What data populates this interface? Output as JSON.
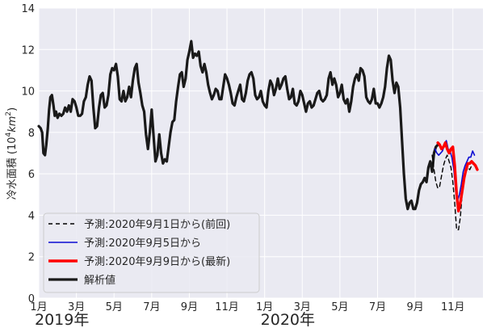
{
  "chart_data": {
    "type": "line",
    "title": "",
    "xlabel": "",
    "ylabel_prefix": "冷水面積 (10",
    "ylabel_exp1": "4",
    "ylabel_unit": "km",
    "ylabel_exp2": "2",
    "ylabel_suffix": ")",
    "ylim": [
      0,
      14
    ],
    "yticks": [
      "0",
      "2",
      "4",
      "6",
      "8",
      "10",
      "12",
      "14"
    ],
    "xlim_months": [
      0,
      23.6
    ],
    "xticks": [
      {
        "m": 0,
        "label": "1月"
      },
      {
        "m": 2,
        "label": "3月"
      },
      {
        "m": 4,
        "label": "5月"
      },
      {
        "m": 6,
        "label": "7月"
      },
      {
        "m": 8,
        "label": "9月"
      },
      {
        "m": 10,
        "label": "11月"
      },
      {
        "m": 12,
        "label": "1月"
      },
      {
        "m": 14,
        "label": "3月"
      },
      {
        "m": 16,
        "label": "5月"
      },
      {
        "m": 18,
        "label": "7月"
      },
      {
        "m": 20,
        "label": "9月"
      },
      {
        "m": 22,
        "label": "11月"
      }
    ],
    "year_labels": [
      {
        "m": 0,
        "label": "2019年"
      },
      {
        "m": 12,
        "label": "2020年"
      }
    ],
    "grid": true,
    "legend_position": "lower-left",
    "series": [
      {
        "name": "解析値",
        "color": "#1a1a1a",
        "dash": "",
        "width": 3.2,
        "points": [
          [
            0.0,
            8.3
          ],
          [
            0.1,
            8.2
          ],
          [
            0.18,
            8.0
          ],
          [
            0.25,
            7.0
          ],
          [
            0.33,
            6.9
          ],
          [
            0.4,
            7.4
          ],
          [
            0.48,
            8.2
          ],
          [
            0.55,
            9.1
          ],
          [
            0.62,
            9.7
          ],
          [
            0.7,
            9.8
          ],
          [
            0.78,
            9.3
          ],
          [
            0.85,
            8.8
          ],
          [
            0.92,
            9.0
          ],
          [
            1.0,
            8.7
          ],
          [
            1.1,
            8.9
          ],
          [
            1.2,
            8.8
          ],
          [
            1.3,
            8.9
          ],
          [
            1.4,
            9.2
          ],
          [
            1.5,
            9.0
          ],
          [
            1.6,
            9.3
          ],
          [
            1.7,
            9.0
          ],
          [
            1.8,
            9.6
          ],
          [
            1.9,
            9.5
          ],
          [
            2.0,
            9.2
          ],
          [
            2.1,
            8.8
          ],
          [
            2.2,
            8.8
          ],
          [
            2.3,
            8.9
          ],
          [
            2.4,
            9.5
          ],
          [
            2.5,
            9.7
          ],
          [
            2.6,
            10.3
          ],
          [
            2.7,
            10.7
          ],
          [
            2.8,
            10.5
          ],
          [
            2.9,
            9.2
          ],
          [
            3.0,
            8.2
          ],
          [
            3.1,
            8.3
          ],
          [
            3.2,
            9.2
          ],
          [
            3.3,
            9.8
          ],
          [
            3.4,
            9.9
          ],
          [
            3.5,
            9.2
          ],
          [
            3.6,
            9.3
          ],
          [
            3.7,
            9.8
          ],
          [
            3.8,
            10.8
          ],
          [
            3.9,
            11.1
          ],
          [
            4.0,
            11.0
          ],
          [
            4.1,
            11.3
          ],
          [
            4.2,
            10.7
          ],
          [
            4.3,
            9.6
          ],
          [
            4.4,
            9.5
          ],
          [
            4.5,
            10.0
          ],
          [
            4.6,
            9.5
          ],
          [
            4.7,
            9.7
          ],
          [
            4.8,
            10.2
          ],
          [
            4.9,
            9.7
          ],
          [
            5.0,
            10.5
          ],
          [
            5.1,
            11.1
          ],
          [
            5.2,
            11.3
          ],
          [
            5.3,
            10.4
          ],
          [
            5.4,
            9.9
          ],
          [
            5.5,
            9.3
          ],
          [
            5.6,
            9.0
          ],
          [
            5.7,
            7.9
          ],
          [
            5.8,
            7.2
          ],
          [
            5.9,
            8.0
          ],
          [
            6.0,
            9.1
          ],
          [
            6.1,
            7.8
          ],
          [
            6.2,
            6.6
          ],
          [
            6.3,
            6.9
          ],
          [
            6.4,
            7.9
          ],
          [
            6.5,
            7.0
          ],
          [
            6.6,
            6.5
          ],
          [
            6.7,
            6.7
          ],
          [
            6.8,
            6.6
          ],
          [
            6.9,
            7.3
          ],
          [
            7.0,
            8.0
          ],
          [
            7.1,
            8.5
          ],
          [
            7.2,
            8.6
          ],
          [
            7.3,
            9.5
          ],
          [
            7.4,
            10.2
          ],
          [
            7.5,
            10.8
          ],
          [
            7.6,
            10.9
          ],
          [
            7.7,
            10.2
          ],
          [
            7.8,
            10.6
          ],
          [
            7.9,
            11.5
          ],
          [
            8.0,
            11.9
          ],
          [
            8.1,
            12.4
          ],
          [
            8.2,
            11.6
          ],
          [
            8.3,
            11.8
          ],
          [
            8.4,
            11.7
          ],
          [
            8.5,
            11.9
          ],
          [
            8.6,
            11.2
          ],
          [
            8.7,
            10.9
          ],
          [
            8.8,
            11.3
          ],
          [
            8.9,
            10.9
          ],
          [
            9.0,
            10.3
          ],
          [
            9.1,
            9.9
          ],
          [
            9.2,
            9.6
          ],
          [
            9.3,
            9.8
          ],
          [
            9.4,
            10.1
          ],
          [
            9.5,
            10.0
          ],
          [
            9.6,
            9.6
          ],
          [
            9.7,
            9.6
          ],
          [
            9.8,
            10.2
          ],
          [
            9.9,
            10.8
          ],
          [
            10.0,
            10.6
          ],
          [
            10.1,
            10.3
          ],
          [
            10.2,
            9.9
          ],
          [
            10.3,
            9.4
          ],
          [
            10.4,
            9.3
          ],
          [
            10.5,
            9.7
          ],
          [
            10.6,
            10.0
          ],
          [
            10.7,
            10.3
          ],
          [
            10.8,
            9.6
          ],
          [
            10.9,
            9.5
          ],
          [
            11.0,
            9.9
          ],
          [
            11.1,
            10.5
          ],
          [
            11.2,
            10.8
          ],
          [
            11.3,
            10.9
          ],
          [
            11.4,
            10.6
          ],
          [
            11.5,
            9.8
          ],
          [
            11.6,
            9.6
          ],
          [
            11.7,
            9.7
          ],
          [
            11.8,
            10.0
          ],
          [
            11.9,
            9.5
          ],
          [
            12.0,
            9.3
          ],
          [
            12.1,
            9.2
          ],
          [
            12.2,
            10.0
          ],
          [
            12.3,
            10.5
          ],
          [
            12.4,
            10.3
          ],
          [
            12.5,
            9.8
          ],
          [
            12.6,
            10.1
          ],
          [
            12.7,
            10.6
          ],
          [
            12.8,
            10.1
          ],
          [
            12.9,
            10.3
          ],
          [
            13.0,
            10.6
          ],
          [
            13.1,
            10.7
          ],
          [
            13.2,
            10.1
          ],
          [
            13.3,
            9.6
          ],
          [
            13.4,
            9.7
          ],
          [
            13.5,
            10.1
          ],
          [
            13.6,
            9.4
          ],
          [
            13.7,
            9.3
          ],
          [
            13.8,
            9.5
          ],
          [
            13.9,
            10.0
          ],
          [
            14.0,
            9.8
          ],
          [
            14.1,
            9.4
          ],
          [
            14.2,
            9.0
          ],
          [
            14.3,
            9.4
          ],
          [
            14.4,
            9.5
          ],
          [
            14.5,
            9.2
          ],
          [
            14.6,
            9.3
          ],
          [
            14.7,
            9.6
          ],
          [
            14.8,
            9.9
          ],
          [
            14.9,
            10.0
          ],
          [
            15.0,
            9.6
          ],
          [
            15.1,
            9.5
          ],
          [
            15.2,
            9.6
          ],
          [
            15.3,
            9.8
          ],
          [
            15.4,
            10.6
          ],
          [
            15.5,
            10.9
          ],
          [
            15.6,
            10.3
          ],
          [
            15.7,
            10.6
          ],
          [
            15.8,
            10.3
          ],
          [
            15.9,
            9.7
          ],
          [
            16.0,
            9.9
          ],
          [
            16.1,
            10.3
          ],
          [
            16.2,
            9.6
          ],
          [
            16.3,
            9.4
          ],
          [
            16.4,
            9.6
          ],
          [
            16.5,
            9.0
          ],
          [
            16.6,
            9.5
          ],
          [
            16.7,
            10.2
          ],
          [
            16.8,
            10.6
          ],
          [
            16.9,
            10.8
          ],
          [
            17.0,
            10.5
          ],
          [
            17.1,
            11.1
          ],
          [
            17.2,
            11.0
          ],
          [
            17.3,
            10.7
          ],
          [
            17.4,
            9.7
          ],
          [
            17.5,
            9.5
          ],
          [
            17.6,
            9.4
          ],
          [
            17.7,
            9.6
          ],
          [
            17.8,
            10.1
          ],
          [
            17.9,
            9.4
          ],
          [
            18.0,
            9.4
          ],
          [
            18.1,
            9.2
          ],
          [
            18.2,
            9.4
          ],
          [
            18.3,
            9.7
          ],
          [
            18.4,
            10.2
          ],
          [
            18.5,
            11.1
          ],
          [
            18.6,
            11.7
          ],
          [
            18.7,
            11.5
          ],
          [
            18.8,
            10.5
          ],
          [
            18.9,
            9.9
          ],
          [
            19.0,
            10.4
          ],
          [
            19.1,
            10.2
          ],
          [
            19.2,
            9.2
          ],
          [
            19.3,
            7.6
          ],
          [
            19.4,
            6.0
          ],
          [
            19.5,
            4.8
          ],
          [
            19.6,
            4.3
          ],
          [
            19.7,
            4.6
          ],
          [
            19.8,
            4.7
          ],
          [
            19.9,
            4.3
          ],
          [
            20.0,
            4.3
          ],
          [
            20.1,
            4.6
          ],
          [
            20.2,
            5.2
          ],
          [
            20.3,
            5.5
          ],
          [
            20.4,
            5.6
          ],
          [
            20.5,
            5.8
          ],
          [
            20.6,
            5.6
          ],
          [
            20.7,
            6.3
          ],
          [
            20.8,
            6.6
          ],
          [
            20.9,
            6.1
          ],
          [
            21.0,
            7.0
          ],
          [
            21.1,
            7.3
          ],
          [
            21.2,
            7.4
          ]
        ]
      },
      {
        "name": "予測:2020年9月1日から(前回)",
        "color": "#000000",
        "dash": "5,4",
        "width": 1.4,
        "points": [
          [
            20.9,
            6.9
          ],
          [
            21.0,
            6.2
          ],
          [
            21.1,
            5.6
          ],
          [
            21.2,
            5.3
          ],
          [
            21.3,
            5.4
          ],
          [
            21.4,
            5.9
          ],
          [
            21.5,
            6.4
          ],
          [
            21.6,
            6.7
          ],
          [
            21.7,
            6.9
          ],
          [
            21.8,
            6.6
          ],
          [
            21.9,
            6.3
          ],
          [
            22.0,
            5.6
          ],
          [
            22.1,
            4.6
          ],
          [
            22.2,
            3.3
          ],
          [
            22.3,
            3.3
          ],
          [
            22.4,
            3.9
          ],
          [
            22.5,
            5.1
          ],
          [
            22.6,
            5.7
          ],
          [
            22.7,
            6.1
          ],
          [
            22.8,
            6.3
          ],
          [
            22.9,
            6.2
          ],
          [
            23.0,
            6.4
          ],
          [
            23.1,
            6.5
          ],
          [
            23.2,
            6.3
          ]
        ]
      },
      {
        "name": "予測:2020年9月5日から",
        "color": "#0a0ad2",
        "dash": "",
        "width": 1.6,
        "points": [
          [
            21.05,
            7.2
          ],
          [
            21.15,
            7.0
          ],
          [
            21.25,
            6.9
          ],
          [
            21.35,
            7.0
          ],
          [
            21.45,
            7.1
          ],
          [
            21.55,
            7.4
          ],
          [
            21.65,
            7.6
          ],
          [
            21.75,
            7.2
          ],
          [
            21.85,
            7.1
          ],
          [
            21.95,
            6.8
          ],
          [
            22.05,
            6.2
          ],
          [
            22.15,
            5.2
          ],
          [
            22.25,
            4.7
          ],
          [
            22.35,
            5.0
          ],
          [
            22.45,
            5.5
          ],
          [
            22.55,
            6.1
          ],
          [
            22.65,
            6.4
          ],
          [
            22.75,
            6.6
          ],
          [
            22.85,
            6.8
          ],
          [
            22.95,
            6.8
          ],
          [
            23.05,
            7.1
          ],
          [
            23.15,
            6.9
          ]
        ]
      },
      {
        "name": "予測:2020年9月9日から(最新)",
        "color": "#ff0000",
        "dash": "",
        "width": 3.4,
        "points": [
          [
            21.2,
            7.5
          ],
          [
            21.3,
            7.4
          ],
          [
            21.4,
            7.2
          ],
          [
            21.5,
            7.3
          ],
          [
            21.6,
            7.5
          ],
          [
            21.7,
            7.2
          ],
          [
            21.8,
            7.0
          ],
          [
            21.9,
            7.2
          ],
          [
            22.0,
            7.3
          ],
          [
            22.1,
            6.4
          ],
          [
            22.2,
            5.0
          ],
          [
            22.3,
            4.2
          ],
          [
            22.4,
            4.6
          ],
          [
            22.5,
            5.2
          ],
          [
            22.6,
            5.8
          ],
          [
            22.7,
            6.2
          ],
          [
            22.8,
            6.5
          ],
          [
            22.9,
            6.5
          ],
          [
            23.0,
            6.6
          ],
          [
            23.1,
            6.5
          ],
          [
            23.2,
            6.4
          ],
          [
            23.3,
            6.2
          ]
        ]
      }
    ]
  }
}
